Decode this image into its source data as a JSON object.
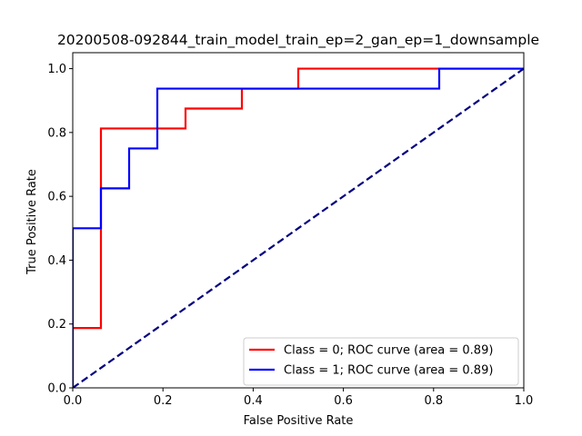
{
  "chart_data": {
    "type": "line",
    "title": "20200508-092844_train_model_train_ep=2_gan_ep=1_downsample",
    "xlabel": "False Positive Rate",
    "ylabel": "True Positive Rate",
    "xlim": [
      0.0,
      1.0
    ],
    "ylim": [
      0.0,
      1.05
    ],
    "xticks": [
      0.0,
      0.2,
      0.4,
      0.6,
      0.8,
      1.0
    ],
    "yticks": [
      0.0,
      0.2,
      0.4,
      0.6,
      0.8,
      1.0
    ],
    "xtick_labels": [
      "0.0",
      "0.2",
      "0.4",
      "0.6",
      "0.8",
      "1.0"
    ],
    "ytick_labels": [
      "0.0",
      "0.2",
      "0.4",
      "0.6",
      "0.8",
      "1.0"
    ],
    "grid": false,
    "legend_position": "lower-right",
    "series": [
      {
        "name": "Class = 0; ROC curve (area =  0.89)",
        "color": "#ff0000",
        "style": "solid",
        "x": [
          0.0,
          0.0,
          0.0625,
          0.0625,
          0.25,
          0.25,
          0.375,
          0.375,
          0.5,
          0.5,
          1.0
        ],
        "y": [
          0.0,
          0.1875,
          0.1875,
          0.8125,
          0.8125,
          0.875,
          0.875,
          0.9375,
          0.9375,
          1.0,
          1.0
        ]
      },
      {
        "name": "Class = 1; ROC curve (area =  0.89)",
        "color": "#0000ff",
        "style": "solid",
        "x": [
          0.0,
          0.0,
          0.0625,
          0.0625,
          0.125,
          0.125,
          0.1875,
          0.1875,
          0.8125,
          0.8125,
          1.0
        ],
        "y": [
          0.0,
          0.5,
          0.5,
          0.625,
          0.625,
          0.75,
          0.75,
          0.9375,
          0.9375,
          1.0,
          1.0
        ]
      },
      {
        "name": "",
        "color": "#000080",
        "style": "dashed",
        "x": [
          0.0,
          1.0
        ],
        "y": [
          0.0,
          1.0
        ]
      }
    ]
  }
}
